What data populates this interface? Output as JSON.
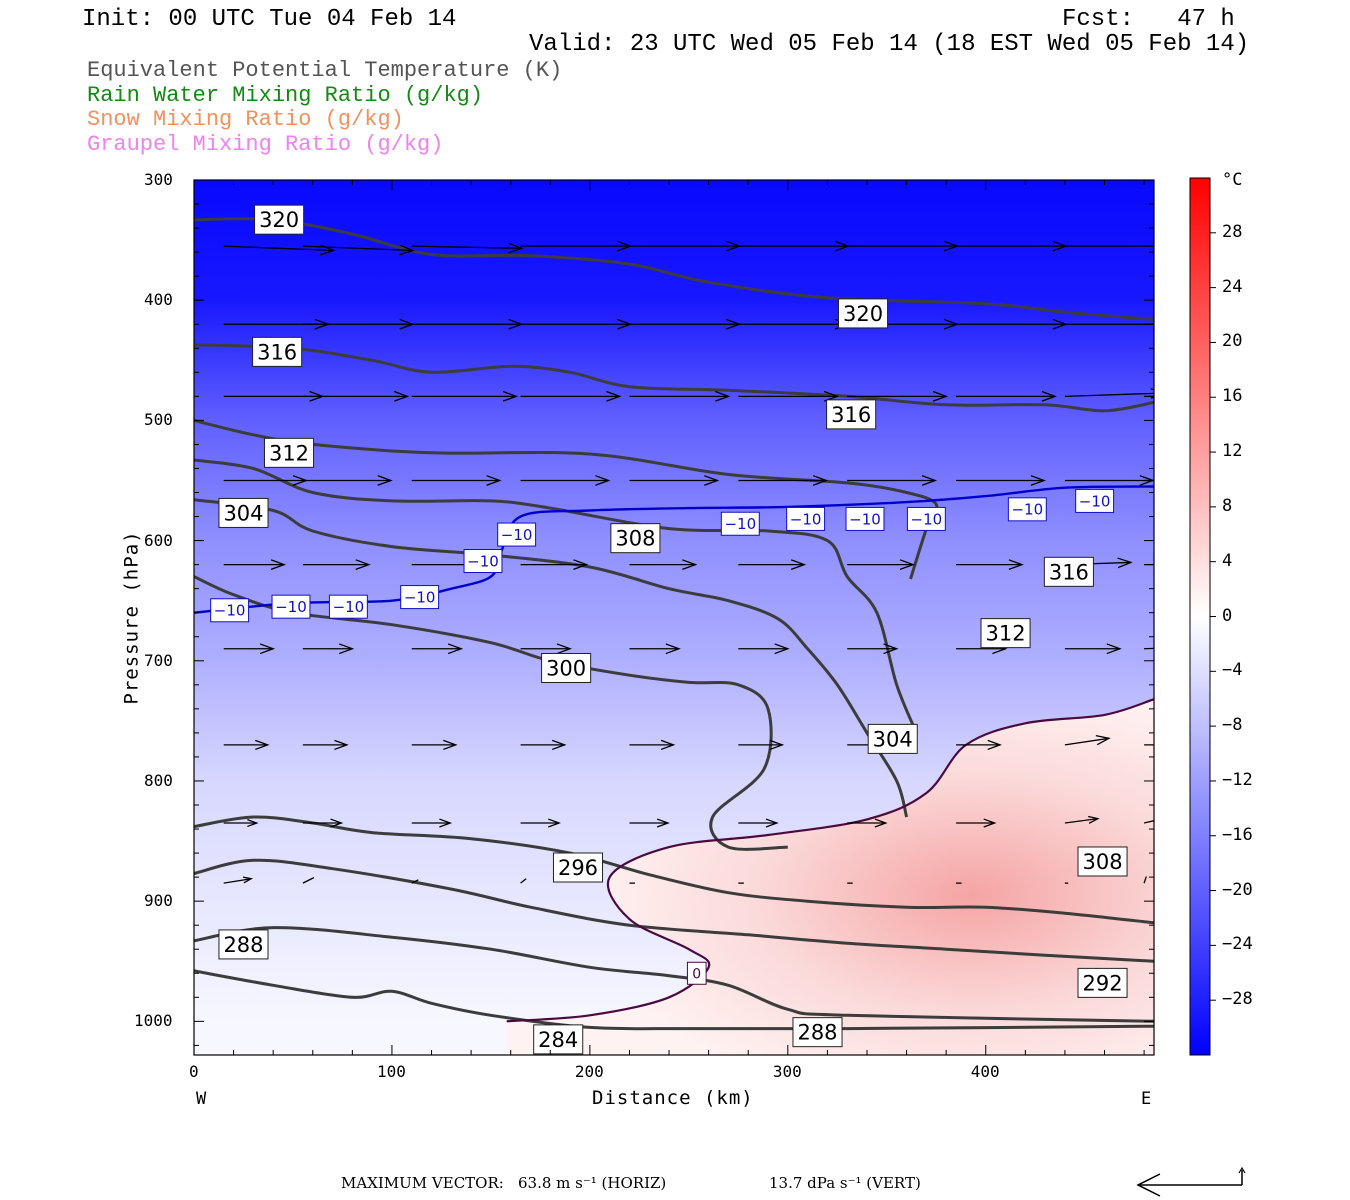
{
  "header": {
    "init": "Init: 00 UTC Tue 04 Feb 14",
    "fcst": "Fcst:   47 h",
    "valid": "Valid: 23 UTC Wed 05 Feb 14 (18 EST Wed 05 Feb 14)"
  },
  "legend": [
    {
      "label": "Equivalent Potential Temperature (K)",
      "color": "#555555"
    },
    {
      "label": "Rain Water Mixing Ratio (g/kg)",
      "color": "#138a13"
    },
    {
      "label": "Snow Mixing Ratio (g/kg)",
      "color": "#f29060"
    },
    {
      "label": "Graupel Mixing Ratio (g/kg)",
      "color": "#ee82ee"
    }
  ],
  "chart_data": {
    "type": "heatmap",
    "xlabel": "Distance (km)",
    "ylabel": "Pressure (hPa)",
    "xlim": [
      0,
      485
    ],
    "ylim": [
      1028,
      300
    ],
    "x_ticks": [
      0,
      100,
      200,
      300,
      400
    ],
    "y_ticks": [
      300,
      400,
      500,
      600,
      700,
      800,
      900,
      1000
    ],
    "x_end_labels": {
      "left": "W",
      "right": "E"
    },
    "colorbar": {
      "unit": "°C",
      "range": [
        -32,
        32
      ],
      "tick_values": [
        28,
        24,
        20,
        16,
        12,
        8,
        4,
        0,
        -4,
        -8,
        -12,
        -16,
        -20,
        -24,
        -28
      ],
      "tick_labels": [
        "28",
        "24",
        "20",
        "16",
        "12",
        "8",
        "4",
        "0",
        "−4",
        "−8",
        "−12",
        "−16",
        "−20",
        "−24",
        "−28"
      ]
    },
    "temperature_fill_bands": [
      {
        "p": 300,
        "t": -31
      },
      {
        "p": 400,
        "t": -29
      },
      {
        "p": 500,
        "t": -20
      },
      {
        "p": 600,
        "t": -14
      },
      {
        "p": 700,
        "t": -10
      },
      {
        "p": 800,
        "t": -5
      },
      {
        "p": 900,
        "t": -3
      },
      {
        "p": 1000,
        "t": -1
      }
    ],
    "warm_region_peak_c": 6,
    "theta_e_contours": [
      {
        "label": "320",
        "points": [
          [
            0,
            333
          ],
          [
            40,
            333
          ],
          [
            80,
            345
          ],
          [
            120,
            362
          ],
          [
            170,
            363
          ],
          [
            220,
            370
          ],
          [
            260,
            385
          ],
          [
            320,
            398
          ],
          [
            400,
            403
          ],
          [
            440,
            410
          ],
          [
            485,
            416
          ]
        ]
      },
      {
        "label": "316",
        "points": [
          [
            0,
            437
          ],
          [
            50,
            440
          ],
          [
            90,
            450
          ],
          [
            120,
            460
          ],
          [
            160,
            455
          ],
          [
            190,
            460
          ],
          [
            220,
            472
          ],
          [
            270,
            475
          ],
          [
            330,
            480
          ],
          [
            380,
            487
          ],
          [
            430,
            487
          ],
          [
            460,
            492
          ],
          [
            485,
            485
          ]
        ]
      },
      {
        "label": "312",
        "points": [
          [
            0,
            500
          ],
          [
            30,
            512
          ],
          [
            60,
            520
          ],
          [
            120,
            527
          ],
          [
            200,
            528
          ],
          [
            270,
            545
          ],
          [
            330,
            552
          ],
          [
            360,
            560
          ],
          [
            375,
            570
          ],
          [
            370,
            590
          ],
          [
            362,
            632
          ]
        ]
      },
      {
        "label": "308",
        "points": [
          [
            0,
            533
          ],
          [
            30,
            540
          ],
          [
            60,
            560
          ],
          [
            100,
            567
          ],
          [
            150,
            567
          ],
          [
            180,
            573
          ],
          [
            240,
            590
          ],
          [
            290,
            592
          ],
          [
            320,
            600
          ],
          [
            330,
            630
          ],
          [
            345,
            660
          ],
          [
            355,
            720
          ],
          [
            365,
            760
          ]
        ]
      },
      {
        "label": "304",
        "points": [
          [
            0,
            566
          ],
          [
            40,
            575
          ],
          [
            60,
            592
          ],
          [
            100,
            605
          ],
          [
            150,
            612
          ],
          [
            200,
            622
          ],
          [
            240,
            640
          ],
          [
            270,
            650
          ],
          [
            295,
            665
          ],
          [
            310,
            690
          ],
          [
            325,
            720
          ],
          [
            340,
            760
          ],
          [
            355,
            800
          ],
          [
            360,
            830
          ]
        ]
      },
      {
        "label": "300",
        "points": [
          [
            0,
            630
          ],
          [
            20,
            645
          ],
          [
            50,
            660
          ],
          [
            100,
            670
          ],
          [
            150,
            685
          ],
          [
            180,
            700
          ],
          [
            220,
            712
          ],
          [
            250,
            718
          ],
          [
            275,
            720
          ],
          [
            290,
            740
          ],
          [
            288,
            790
          ],
          [
            262,
            830
          ],
          [
            270,
            855
          ],
          [
            300,
            855
          ]
        ]
      },
      {
        "label": "296",
        "points": [
          [
            0,
            838
          ],
          [
            30,
            830
          ],
          [
            60,
            835
          ],
          [
            90,
            843
          ],
          [
            140,
            848
          ],
          [
            190,
            860
          ],
          [
            230,
            878
          ],
          [
            270,
            893
          ],
          [
            310,
            900
          ],
          [
            360,
            905
          ],
          [
            400,
            905
          ],
          [
            440,
            910
          ],
          [
            485,
            918
          ]
        ]
      },
      {
        "label": "292",
        "points": [
          [
            0,
            877
          ],
          [
            30,
            866
          ],
          [
            70,
            873
          ],
          [
            130,
            890
          ],
          [
            170,
            905
          ],
          [
            220,
            920
          ],
          [
            280,
            928
          ],
          [
            330,
            935
          ],
          [
            380,
            940
          ],
          [
            430,
            945
          ],
          [
            485,
            950
          ]
        ]
      },
      {
        "label": "288",
        "points": [
          [
            0,
            933
          ],
          [
            40,
            922
          ],
          [
            100,
            930
          ],
          [
            150,
            940
          ],
          [
            200,
            955
          ],
          [
            240,
            962
          ],
          [
            270,
            970
          ],
          [
            300,
            990
          ],
          [
            330,
            995
          ],
          [
            485,
            1000
          ]
        ]
      },
      {
        "label": "284",
        "points": [
          [
            0,
            958
          ],
          [
            40,
            970
          ],
          [
            80,
            980
          ],
          [
            100,
            975
          ],
          [
            120,
            985
          ],
          [
            150,
            995
          ],
          [
            200,
            1005
          ],
          [
            250,
            1006
          ],
          [
            330,
            1006
          ],
          [
            485,
            1004
          ]
        ]
      }
    ],
    "isotherm_0": {
      "label": "0",
      "color": "#4a0a40",
      "points": [
        [
          158,
          1000
        ],
        [
          200,
          995
        ],
        [
          240,
          980
        ],
        [
          260,
          955
        ],
        [
          250,
          940
        ],
        [
          220,
          915
        ],
        [
          210,
          880
        ],
        [
          240,
          855
        ],
        [
          290,
          845
        ],
        [
          340,
          832
        ],
        [
          370,
          810
        ],
        [
          390,
          770
        ],
        [
          420,
          752
        ],
        [
          460,
          745
        ],
        [
          485,
          732
        ]
      ]
    },
    "isotherm_minus10": {
      "label": "−10",
      "color": "#0000cc",
      "points": [
        [
          0,
          660
        ],
        [
          50,
          652
        ],
        [
          100,
          650
        ],
        [
          130,
          640
        ],
        [
          150,
          630
        ],
        [
          155,
          610
        ],
        [
          165,
          580
        ],
        [
          200,
          575
        ],
        [
          250,
          573
        ],
        [
          300,
          572
        ],
        [
          360,
          568
        ],
        [
          400,
          563
        ],
        [
          440,
          556
        ],
        [
          485,
          555
        ]
      ]
    },
    "contour_labels": [
      {
        "text": "320",
        "x": 43,
        "p": 333
      },
      {
        "text": "320",
        "x": 338,
        "p": 411
      },
      {
        "text": "316",
        "x": 42,
        "p": 443
      },
      {
        "text": "316",
        "x": 332,
        "p": 495
      },
      {
        "text": "312",
        "x": 48,
        "p": 527
      },
      {
        "text": "312",
        "x": 410,
        "p": 677
      },
      {
        "text": "308",
        "x": 223,
        "p": 598
      },
      {
        "text": "308",
        "x": 459,
        "p": 867
      },
      {
        "text": "304",
        "x": 25,
        "p": 577
      },
      {
        "text": "304",
        "x": 353,
        "p": 765
      },
      {
        "text": "300",
        "x": 188,
        "p": 706
      },
      {
        "text": "296",
        "x": 194,
        "p": 872
      },
      {
        "text": "292",
        "x": 459,
        "p": 968
      },
      {
        "text": "288",
        "x": 25,
        "p": 936
      },
      {
        "text": "288",
        "x": 315,
        "p": 1009
      },
      {
        "text": "284",
        "x": 184,
        "p": 1015
      },
      {
        "text": "316",
        "x": 442,
        "p": 626
      }
    ],
    "minus10_labels": [
      {
        "x": 18,
        "p": 658
      },
      {
        "x": 49,
        "p": 655
      },
      {
        "x": 78,
        "p": 655
      },
      {
        "x": 114,
        "p": 647
      },
      {
        "x": 146,
        "p": 617
      },
      {
        "x": 163,
        "p": 595
      },
      {
        "x": 276,
        "p": 586
      },
      {
        "x": 309,
        "p": 582
      },
      {
        "x": 339,
        "p": 582
      },
      {
        "x": 370,
        "p": 582
      },
      {
        "x": 421,
        "p": 574
      },
      {
        "x": 455,
        "p": 567
      }
    ],
    "zero_label": {
      "text": "0",
      "x": 254,
      "p": 960
    },
    "vectors": {
      "x": [
        15,
        55,
        110,
        165,
        220,
        275,
        330,
        385,
        440,
        480
      ],
      "rows": [
        {
          "p": 355,
          "u": [
            1.0,
            1.0,
            1.0,
            1.0,
            1.0,
            1.0,
            1.0,
            1.0,
            1.0,
            1.0
          ],
          "w": [
            -0.04,
            -0.04,
            -0.02,
            0,
            0,
            0,
            0,
            0,
            0,
            0
          ]
        },
        {
          "p": 420,
          "u": [
            0.95,
            1.0,
            1.0,
            1.0,
            1.0,
            1.0,
            1.0,
            1.0,
            1.0,
            0.9
          ],
          "w": [
            0,
            0,
            0,
            0,
            0,
            0,
            0,
            0,
            0,
            0
          ]
        },
        {
          "p": 480,
          "u": [
            0.9,
            0.95,
            0.95,
            0.9,
            0.9,
            0.9,
            0.9,
            0.9,
            0.9,
            0.8
          ],
          "w": [
            0,
            0,
            0,
            0,
            0,
            0,
            0,
            0,
            0.03,
            0
          ]
        },
        {
          "p": 550,
          "u": [
            0.75,
            0.8,
            0.8,
            0.8,
            0.8,
            0.8,
            0.8,
            0.8,
            0.8,
            0.7
          ],
          "w": [
            0,
            0,
            0,
            0,
            0,
            0,
            0,
            0,
            0,
            0
          ]
        },
        {
          "p": 620,
          "u": [
            0.55,
            0.6,
            0.6,
            0.6,
            0.6,
            0.6,
            0.6,
            0.6,
            0.6,
            0.55
          ],
          "w": [
            0,
            0,
            0,
            0,
            0,
            0,
            0,
            0,
            0.02,
            0
          ]
        },
        {
          "p": 690,
          "u": [
            0.45,
            0.45,
            0.45,
            0.45,
            0.45,
            0.45,
            0.45,
            0.45,
            0.5,
            0.5
          ],
          "w": [
            0,
            0,
            0,
            0,
            0,
            0,
            0,
            0,
            0,
            0.02
          ]
        },
        {
          "p": 770,
          "u": [
            0.4,
            0.4,
            0.4,
            0.4,
            0.4,
            0.4,
            0.4,
            0.4,
            0.4,
            0.4
          ],
          "w": [
            0,
            0,
            0,
            0,
            0,
            0,
            0,
            0,
            0.06,
            0
          ]
        },
        {
          "p": 835,
          "u": [
            0.3,
            0.35,
            0.35,
            0.35,
            0.35,
            0.35,
            0.35,
            0.35,
            0.3,
            0.25
          ],
          "w": [
            0,
            0,
            0,
            0,
            0,
            0,
            0,
            0,
            0.04,
            0.06
          ]
        },
        {
          "p": 885,
          "u": [
            0.25,
            0.1,
            0.06,
            0.05,
            0.05,
            0.05,
            0.05,
            0.05,
            0.03,
            0.02
          ],
          "w": [
            0.04,
            0.05,
            0.03,
            0.04,
            0,
            0,
            0,
            0,
            0,
            0.06
          ]
        }
      ]
    },
    "max_vector_horiz": "63.8 m s⁻¹ (HORIZ)",
    "max_vector_vert": "13.7 dPa s⁻¹ (VERT)"
  },
  "footer": {
    "label": "MAXIMUM VECTOR:",
    "horiz": "63.8 m s⁻¹ (HORIZ)",
    "vert": "13.7 dPa s⁻¹ (VERT)"
  }
}
